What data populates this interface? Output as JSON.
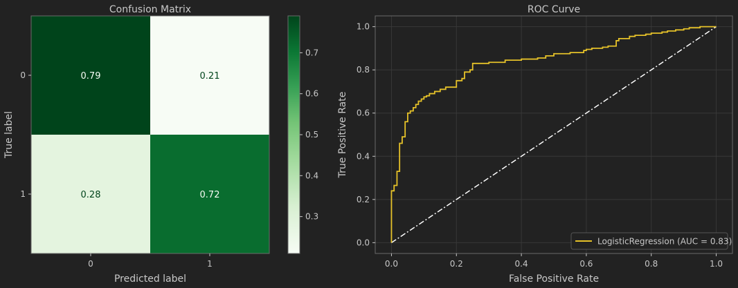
{
  "chart_data": [
    {
      "type": "heatmap",
      "title": "Confusion Matrix",
      "xlabel": "Predicted label",
      "ylabel": "True label",
      "x_categories": [
        "0",
        "1"
      ],
      "y_categories": [
        "0",
        "1"
      ],
      "values": [
        [
          0.79,
          0.21
        ],
        [
          0.28,
          0.72
        ]
      ],
      "cell_labels": [
        [
          "0.79",
          "0.21"
        ],
        [
          "0.28",
          "0.72"
        ]
      ],
      "colormap": "Greens",
      "colorbar": {
        "range": [
          0.21,
          0.79
        ],
        "ticks": [
          "0.3",
          "0.4",
          "0.5",
          "0.6",
          "0.7"
        ]
      }
    },
    {
      "type": "line",
      "title": "ROC Curve",
      "xlabel": "False Positive Rate",
      "ylabel": "True Positive Rate",
      "xlim": [
        -0.05,
        1.05
      ],
      "ylim": [
        -0.05,
        1.05
      ],
      "xticks": [
        "0.0",
        "0.2",
        "0.4",
        "0.6",
        "0.8",
        "1.0"
      ],
      "yticks": [
        "0.0",
        "0.2",
        "0.4",
        "0.6",
        "0.8",
        "1.0"
      ],
      "grid": true,
      "legend": {
        "placement": "lower-right",
        "entries": [
          "LogisticRegression (AUC = 0.83)"
        ]
      },
      "series": [
        {
          "name": "LogisticRegression (AUC = 0.83)",
          "color": "#e6c229",
          "step": true,
          "x": [
            0.0,
            0.0,
            0.008,
            0.008,
            0.017,
            0.017,
            0.025,
            0.025,
            0.033,
            0.033,
            0.042,
            0.042,
            0.05,
            0.05,
            0.058,
            0.058,
            0.067,
            0.067,
            0.075,
            0.075,
            0.083,
            0.083,
            0.092,
            0.092,
            0.1,
            0.1,
            0.108,
            0.108,
            0.117,
            0.117,
            0.133,
            0.133,
            0.15,
            0.15,
            0.167,
            0.167,
            0.2,
            0.2,
            0.217,
            0.217,
            0.225,
            0.225,
            0.242,
            0.242,
            0.25,
            0.25,
            0.3,
            0.3,
            0.35,
            0.35,
            0.4,
            0.4,
            0.45,
            0.45,
            0.475,
            0.475,
            0.5,
            0.5,
            0.55,
            0.55,
            0.592,
            0.592,
            0.6,
            0.6,
            0.617,
            0.617,
            0.65,
            0.65,
            0.667,
            0.667,
            0.692,
            0.692,
            0.7,
            0.7,
            0.733,
            0.733,
            0.75,
            0.75,
            0.783,
            0.783,
            0.8,
            0.8,
            0.833,
            0.833,
            0.85,
            0.85,
            0.875,
            0.875,
            0.9,
            0.9,
            0.917,
            0.917,
            0.95,
            0.95,
            1.0
          ],
          "y": [
            0.0,
            0.24,
            0.24,
            0.265,
            0.265,
            0.33,
            0.33,
            0.46,
            0.46,
            0.49,
            0.49,
            0.56,
            0.56,
            0.6,
            0.6,
            0.61,
            0.61,
            0.625,
            0.625,
            0.64,
            0.64,
            0.655,
            0.655,
            0.665,
            0.665,
            0.675,
            0.675,
            0.68,
            0.68,
            0.69,
            0.69,
            0.7,
            0.7,
            0.71,
            0.71,
            0.72,
            0.72,
            0.75,
            0.75,
            0.76,
            0.76,
            0.79,
            0.79,
            0.8,
            0.8,
            0.83,
            0.83,
            0.835,
            0.835,
            0.845,
            0.845,
            0.85,
            0.85,
            0.855,
            0.855,
            0.865,
            0.865,
            0.875,
            0.875,
            0.88,
            0.88,
            0.89,
            0.89,
            0.895,
            0.895,
            0.9,
            0.9,
            0.905,
            0.905,
            0.91,
            0.91,
            0.935,
            0.935,
            0.945,
            0.945,
            0.955,
            0.955,
            0.96,
            0.96,
            0.965,
            0.965,
            0.97,
            0.97,
            0.975,
            0.975,
            0.98,
            0.98,
            0.985,
            0.985,
            0.99,
            0.99,
            0.995,
            0.995,
            1.0,
            1.0
          ]
        },
        {
          "color": "#ffffff",
          "style": "dash-dot",
          "x": [
            0,
            1
          ],
          "y": [
            0,
            1
          ]
        }
      ]
    }
  ]
}
